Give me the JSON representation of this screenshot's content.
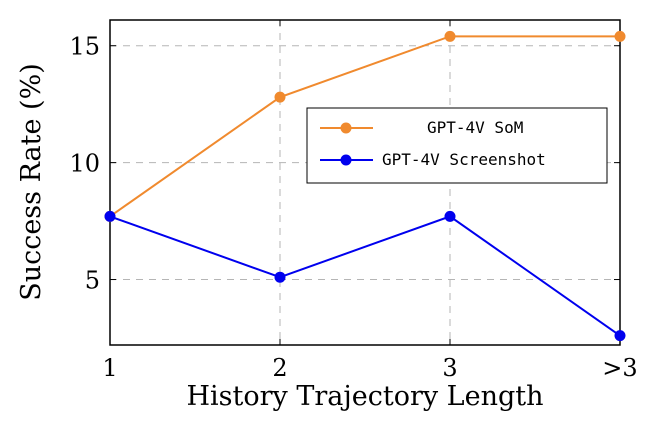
{
  "chart_data": {
    "type": "line",
    "categories": [
      "1",
      "2",
      "3",
      ">3"
    ],
    "xlabel": "History Trajectory Length",
    "ylabel": "Success Rate (%)",
    "ylim": [
      2.2,
      16.1
    ],
    "yticks": [
      5,
      10,
      15
    ],
    "grid": true,
    "legend_position": "top-right",
    "series": [
      {
        "name": "GPT-4V SoM",
        "color": "#F08A2E",
        "values": [
          7.7,
          12.8,
          15.4,
          15.4
        ]
      },
      {
        "name": "GPT-4V Screenshot",
        "color": "#0000EE",
        "values": [
          7.7,
          5.1,
          7.7,
          2.6
        ]
      }
    ]
  }
}
